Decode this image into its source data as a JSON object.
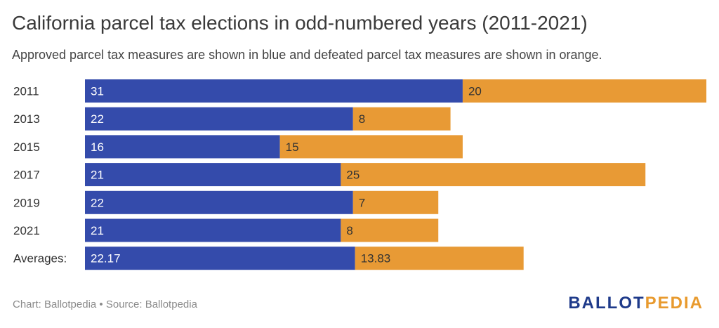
{
  "title": "California parcel tax elections in odd-numbered years (2011-2021)",
  "subtitle": "Approved parcel tax measures are shown in blue and defeated parcel tax measures are shown in orange.",
  "footer": {
    "chart_credit": "Chart: Ballotpedia",
    "separator": " • ",
    "source": "Source: Ballotpedia"
  },
  "logo": {
    "part1": "BALLOT",
    "part2": "PEDIA"
  },
  "colors": {
    "approved": "#344bab",
    "defeated": "#e89a35"
  },
  "chart_data": {
    "type": "bar",
    "orientation": "horizontal",
    "stacked": true,
    "categories": [
      "2011",
      "2013",
      "2015",
      "2017",
      "2019",
      "2021",
      "Averages:"
    ],
    "series": [
      {
        "values": [
          31,
          22,
          16,
          21,
          22,
          21,
          22.17
        ],
        "labels": [
          "31",
          "22",
          "16",
          "21",
          "22",
          "21",
          "22.17"
        ]
      },
      {
        "values": [
          20,
          8,
          15,
          25,
          7,
          8,
          13.83
        ],
        "labels": [
          "20",
          "8",
          "15",
          "25",
          "7",
          "8",
          "13.83"
        ]
      }
    ],
    "xlim": [
      0,
      51
    ],
    "grid": false,
    "legend": "none"
  }
}
